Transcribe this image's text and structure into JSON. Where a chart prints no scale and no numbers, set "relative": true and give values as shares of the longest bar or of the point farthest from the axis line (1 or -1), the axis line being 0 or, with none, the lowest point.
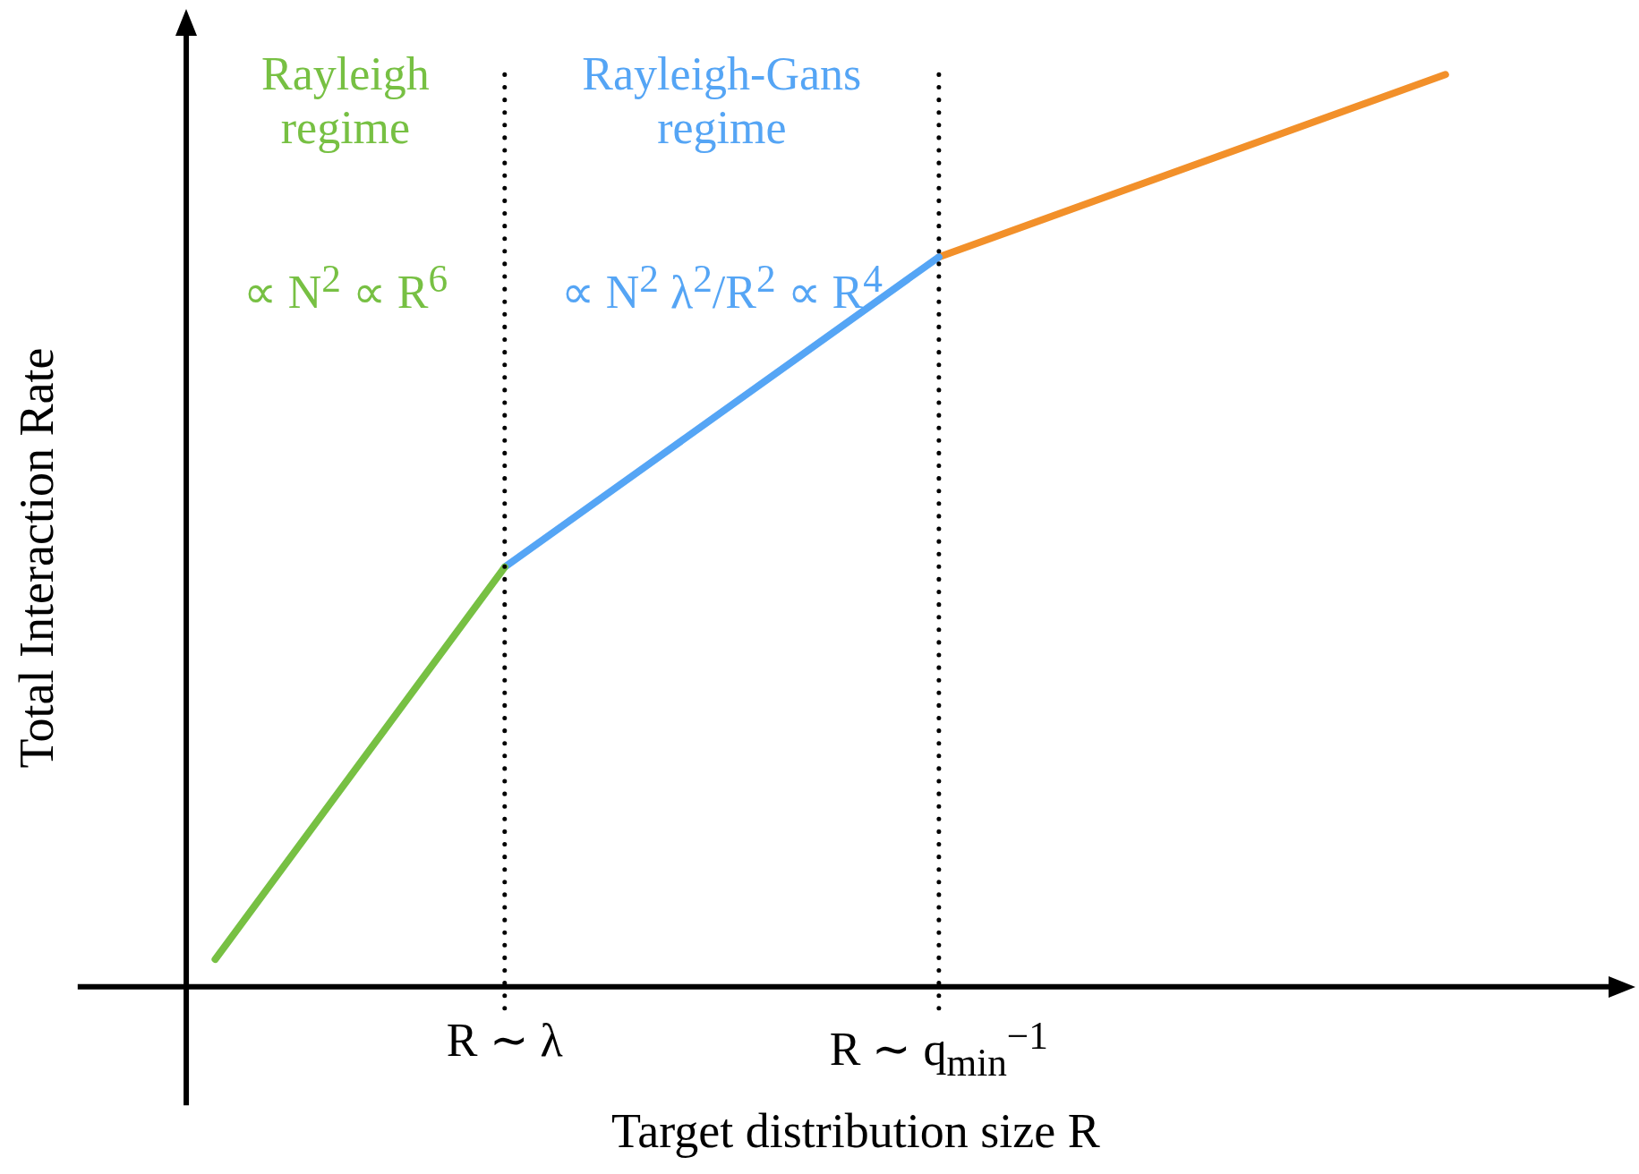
{
  "chart_data": {
    "type": "line",
    "relative": true,
    "xlabel": "Target distribution size R",
    "ylabel": "Total Interaction Rate",
    "categories": [
      null,
      null,
      null,
      null,
      "R ∼ λ",
      null,
      null,
      null,
      null,
      null,
      "R ∼ q$_{min}$$^{−1}$",
      null,
      null,
      null,
      null,
      null,
      null,
      null
    ],
    "legend": false,
    "marker": "none",
    "line_style": "solid",
    "series": [
      {
        "color": "#77c043",
        "values": [
          0.03,
          null,
          null,
          null,
          0.46,
          null,
          null,
          null,
          null,
          null,
          null,
          null,
          null,
          null,
          null,
          null,
          null,
          null
        ]
      },
      {
        "color": "#55a5f5",
        "values": [
          null,
          null,
          null,
          null,
          0.46,
          null,
          null,
          null,
          null,
          null,
          0.8,
          null,
          null,
          null,
          null,
          null,
          null,
          null
        ]
      },
      {
        "color": "#f2902a",
        "values": [
          null,
          null,
          null,
          null,
          null,
          null,
          null,
          null,
          null,
          null,
          0.8,
          null,
          null,
          null,
          null,
          null,
          null,
          1
        ]
      }
    ],
    "ref_lines": [
      {
        "axis": "x",
        "value": "R ∼ λ",
        "line_style": "dotted",
        "color": "#000000"
      },
      {
        "axis": "x",
        "value": "R ∼ q$_{min}$$^{−1}$",
        "line_style": "dotted",
        "color": "#000000"
      }
    ],
    "annotations": [
      "Rayleigh\nregime",
      "∝ N$^{2}$ ∝ R$^{6}$",
      "Rayleigh-Gans\nregime",
      "∝ N$^{2}$ λ$^{2}$/R$^{2}$ ∝ R$^{4}$"
    ]
  }
}
